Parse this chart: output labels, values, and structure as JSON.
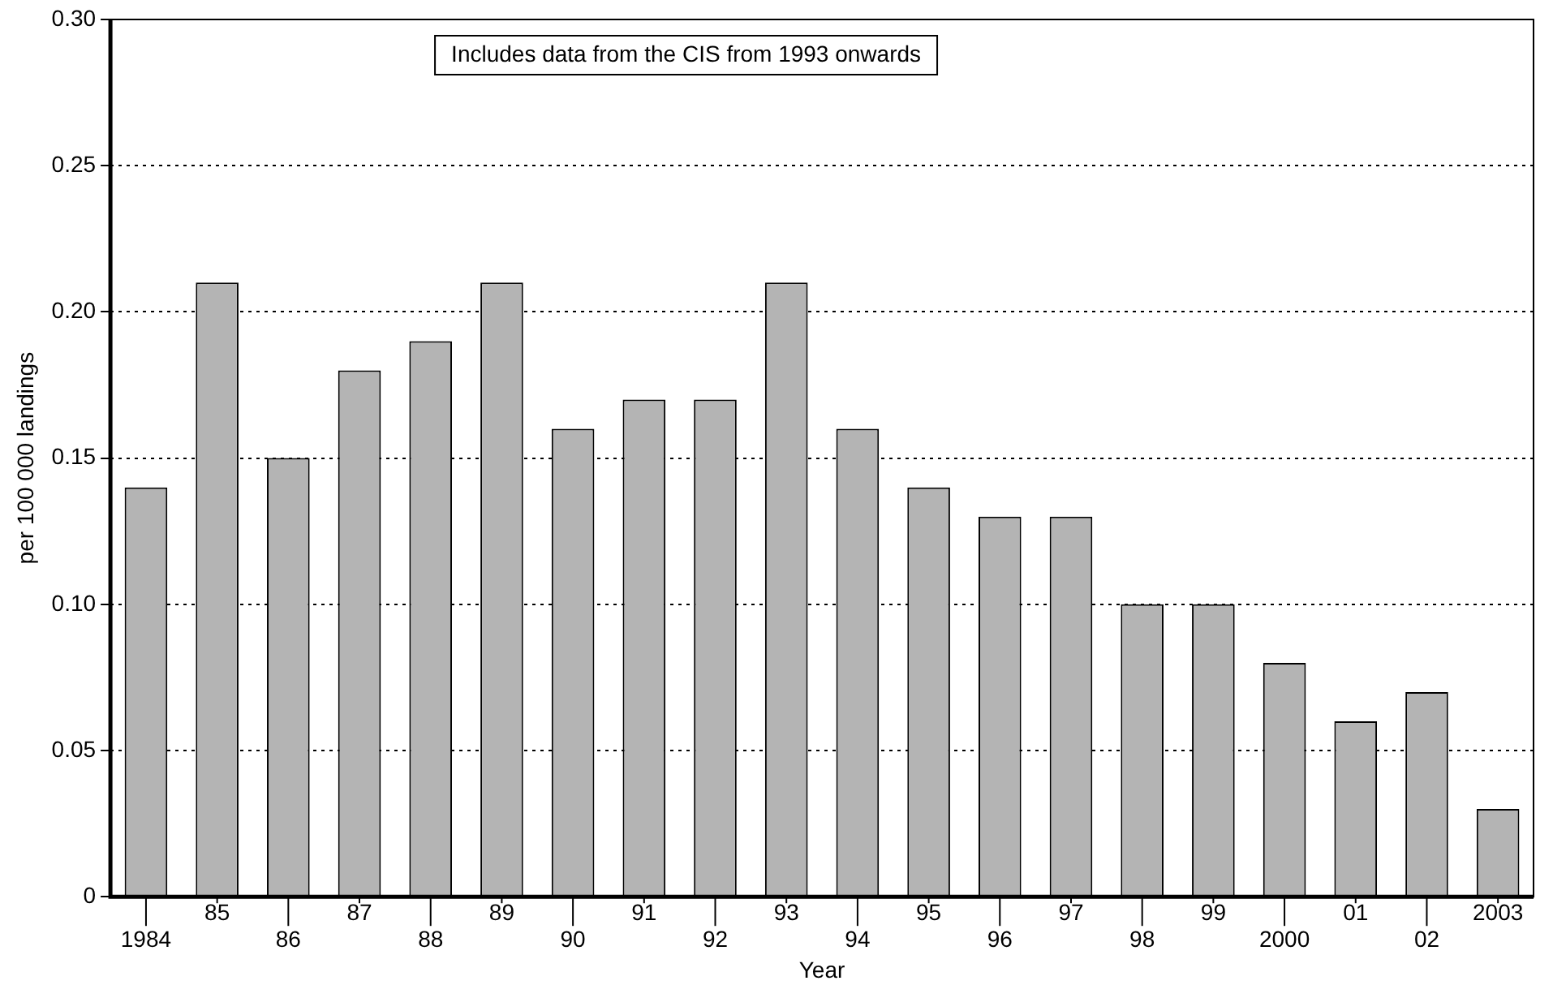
{
  "chart_data": {
    "type": "bar",
    "xlabel": "Year",
    "ylabel": "per 100 000 landings",
    "categories": [
      "1984",
      "85",
      "86",
      "87",
      "88",
      "89",
      "90",
      "91",
      "92",
      "93",
      "94",
      "95",
      "96",
      "97",
      "98",
      "99",
      "2000",
      "01",
      "02",
      "2003"
    ],
    "values": [
      0.14,
      0.21,
      0.15,
      0.18,
      0.19,
      0.21,
      0.16,
      0.17,
      0.17,
      0.21,
      0.16,
      0.14,
      0.13,
      0.13,
      0.1,
      0.1,
      0.08,
      0.06,
      0.07,
      0.03
    ],
    "color": "#b4b4b4",
    "ylim": [
      0,
      0.3
    ],
    "yticks": [
      0,
      {
        "value": 0.05,
        "label": "0.05"
      },
      {
        "value": 0.1,
        "label": "0.10"
      },
      {
        "value": 0.15,
        "label": "0.15"
      },
      {
        "value": 0.2,
        "label": "0.20"
      },
      {
        "value": 0.25,
        "label": "0.25"
      },
      {
        "value": 0.3,
        "label": "0.30"
      }
    ],
    "grid": "y",
    "legend": false,
    "annotations": [
      "Includes data from the CIS from 1993 onwards"
    ]
  }
}
